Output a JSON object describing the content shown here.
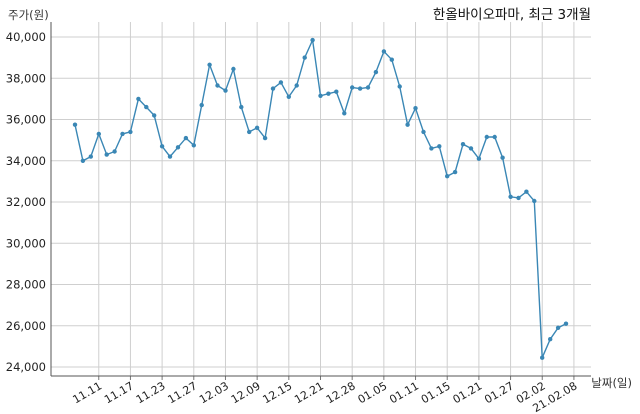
{
  "chart_data": {
    "type": "line",
    "title": "한올바이오파마, 최근 3개월",
    "ylabel": "주가(원)",
    "xlabel": "날짜(일)",
    "ylim": [
      24000,
      40000
    ],
    "ytick_values": [
      24000,
      26000,
      28000,
      30000,
      32000,
      34000,
      36000,
      38000,
      40000
    ],
    "ytick_labels": [
      "24,000",
      "26,000",
      "28,000",
      "30,000",
      "32,000",
      "34,000",
      "36,000",
      "38,000",
      "40,000"
    ],
    "xtick_labels": [
      "11.11",
      "11.17",
      "11.23",
      "11.27",
      "12.03",
      "12.09",
      "12.15",
      "12.21",
      "12.28",
      "01.05",
      "01.11",
      "01.15",
      "01.21",
      "01.27",
      "02.02",
      "21.02.08"
    ],
    "xtick_positions": [
      3,
      7,
      11,
      15,
      19,
      23,
      27,
      31,
      35,
      39,
      43,
      47,
      51,
      55,
      59,
      63
    ],
    "grid": true,
    "series": [
      {
        "color": "#3a87b5",
        "values": [
          35750,
          34000,
          34200,
          35300,
          34300,
          34450,
          35300,
          35400,
          37000,
          36600,
          36200,
          34700,
          34200,
          34650,
          35100,
          34750,
          36700,
          38650,
          37650,
          37400,
          38450,
          36600,
          35400,
          35600,
          35100,
          37500,
          37800,
          37100,
          37650,
          39000,
          39850,
          37150,
          37250,
          37350,
          36300,
          37550,
          37500,
          37550,
          38300,
          39300,
          38900,
          37600,
          35750,
          36550,
          35400,
          34600,
          34700,
          33250,
          33450,
          34800,
          34600,
          34100,
          35150,
          35150,
          34150,
          32250,
          32200,
          32500,
          32050,
          24450,
          25350,
          25900,
          26100
        ]
      }
    ]
  }
}
